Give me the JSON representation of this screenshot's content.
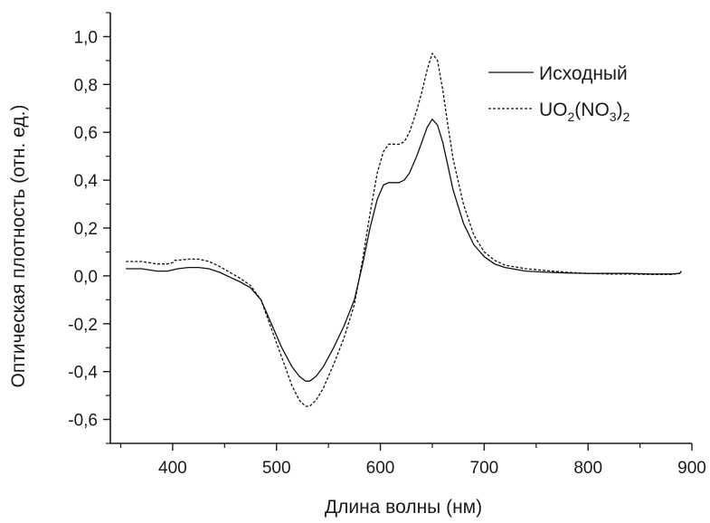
{
  "chart_data": {
    "type": "line",
    "xlabel": "Длина волны (нм)",
    "ylabel": "Оптическая плотность (отн. ед.)",
    "xlim": [
      340,
      900
    ],
    "ylim": [
      -0.7,
      1.1
    ],
    "xticks": [
      400,
      500,
      600,
      700,
      800,
      900
    ],
    "xtick_labels": [
      "400",
      "500",
      "600",
      "700",
      "800",
      "900"
    ],
    "yticks": [
      -0.6,
      -0.4,
      -0.2,
      0.0,
      0.2,
      0.4,
      0.6,
      0.8,
      1.0
    ],
    "ytick_labels": [
      "-0,6",
      "-0,4",
      "-0,2",
      "0,0",
      "0,2",
      "0,4",
      "0,6",
      "0,8",
      "1,0"
    ],
    "grid": false,
    "legend_position": "top-right",
    "legend": [
      {
        "text": "Исходный",
        "style": "solid"
      },
      {
        "text_parts": [
          "UO",
          "2",
          "(NO",
          "3",
          ")",
          "2"
        ],
        "style": "dashed"
      }
    ],
    "series": [
      {
        "name": "Исходный",
        "style": "solid",
        "x": [
          355,
          370,
          385,
          395,
          405,
          415,
          425,
          435,
          445,
          455,
          465,
          475,
          485,
          495,
          505,
          515,
          522,
          528,
          532,
          538,
          545,
          555,
          565,
          575,
          583,
          590,
          597,
          603,
          608,
          613,
          618,
          623,
          628,
          635,
          640,
          645,
          650,
          655,
          660,
          665,
          670,
          680,
          690,
          700,
          710,
          720,
          740,
          760,
          780,
          800,
          820,
          840,
          860,
          880,
          888,
          890
        ],
        "y": [
          0.03,
          0.03,
          0.02,
          0.02,
          0.03,
          0.035,
          0.035,
          0.03,
          0.015,
          -0.005,
          -0.025,
          -0.05,
          -0.1,
          -0.2,
          -0.3,
          -0.38,
          -0.42,
          -0.44,
          -0.44,
          -0.42,
          -0.38,
          -0.3,
          -0.21,
          -0.1,
          0.05,
          0.2,
          0.32,
          0.38,
          0.39,
          0.39,
          0.39,
          0.4,
          0.43,
          0.5,
          0.56,
          0.62,
          0.655,
          0.63,
          0.56,
          0.46,
          0.36,
          0.22,
          0.13,
          0.08,
          0.05,
          0.035,
          0.02,
          0.015,
          0.012,
          0.01,
          0.01,
          0.01,
          0.008,
          0.008,
          0.01,
          0.02
        ]
      },
      {
        "name": "UO2(NO3)2",
        "style": "dashed",
        "x": [
          355,
          370,
          385,
          395,
          400,
          402,
          405,
          415,
          425,
          435,
          445,
          455,
          465,
          475,
          485,
          495,
          505,
          515,
          522,
          528,
          532,
          538,
          545,
          555,
          565,
          575,
          583,
          590,
          597,
          603,
          608,
          613,
          618,
          623,
          628,
          635,
          640,
          645,
          650,
          655,
          660,
          665,
          670,
          680,
          690,
          700,
          710,
          720,
          740,
          760,
          780,
          800,
          820,
          840,
          860,
          880,
          888,
          890
        ],
        "y": [
          0.06,
          0.06,
          0.05,
          0.05,
          0.055,
          0.065,
          0.065,
          0.07,
          0.07,
          0.06,
          0.04,
          0.015,
          -0.01,
          -0.04,
          -0.1,
          -0.22,
          -0.34,
          -0.46,
          -0.52,
          -0.545,
          -0.545,
          -0.52,
          -0.47,
          -0.37,
          -0.26,
          -0.12,
          0.07,
          0.26,
          0.43,
          0.52,
          0.55,
          0.55,
          0.55,
          0.56,
          0.6,
          0.69,
          0.77,
          0.86,
          0.93,
          0.9,
          0.78,
          0.63,
          0.49,
          0.3,
          0.17,
          0.1,
          0.065,
          0.045,
          0.03,
          0.022,
          0.015,
          0.01,
          0.008,
          0.008,
          0.006,
          0.006,
          0.01,
          0.015
        ]
      }
    ]
  }
}
